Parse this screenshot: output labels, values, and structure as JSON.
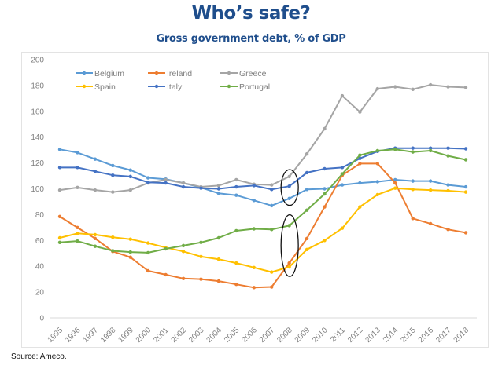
{
  "header": {
    "title": "Who’s safe?",
    "subtitle": "Gross government debt, % of GDP"
  },
  "footer": {
    "source": "Source: Ameco."
  },
  "chart_data": {
    "type": "line",
    "title": "Gross government debt, % of GDP",
    "xlabel": "",
    "ylabel": "",
    "ylim": [
      0,
      200
    ],
    "yticks": [
      0,
      20,
      40,
      60,
      80,
      100,
      120,
      140,
      160,
      180,
      200
    ],
    "grid": "horizontal baseline only",
    "legend_position": "top-left, 3 columns",
    "x": [
      "1995",
      "1996",
      "1997",
      "1998",
      "1999",
      "2000",
      "2001",
      "2002",
      "2003",
      "2004",
      "2005",
      "2006",
      "2007",
      "2008",
      "2009",
      "2010",
      "2011",
      "2012",
      "2013",
      "2014",
      "2015",
      "2016",
      "2017",
      "2018"
    ],
    "series": [
      {
        "name": "Belgium",
        "color": "#5b9bd5",
        "values": [
          130.5,
          128,
          123,
          118,
          114.5,
          108.5,
          107.5,
          104.5,
          101,
          96.5,
          95,
          91,
          87,
          92.5,
          99.5,
          100,
          103,
          104.5,
          105.5,
          107,
          106,
          106,
          103,
          101.5
        ]
      },
      {
        "name": "Ireland",
        "color": "#ed7d31",
        "values": [
          78.5,
          70,
          61.5,
          51.5,
          47,
          36.5,
          33.5,
          30.5,
          30,
          28.5,
          26,
          23.5,
          24,
          42.5,
          61.5,
          86,
          110.5,
          119.5,
          119.5,
          104.5,
          77,
          73,
          68.5,
          66
        ]
      },
      {
        "name": "Greece",
        "color": "#a5a5a5",
        "values": [
          99,
          101,
          99,
          97.5,
          99,
          104.5,
          107,
          104.5,
          101.5,
          102.5,
          107,
          103.5,
          103,
          109.5,
          127,
          146.5,
          172,
          159.5,
          177.5,
          179,
          177,
          180.5,
          179,
          178.5
        ]
      },
      {
        "name": "Spain",
        "color": "#ffc000",
        "values": [
          62,
          65.5,
          64.5,
          62.5,
          61,
          58,
          54.5,
          51.5,
          47.5,
          45.5,
          42.5,
          39,
          35.5,
          39.5,
          53,
          60,
          69.5,
          86,
          95.5,
          100.5,
          99.5,
          99,
          98.5,
          97.5
        ]
      },
      {
        "name": "Italy",
        "color": "#4472c4",
        "values": [
          116.5,
          116.5,
          113.5,
          110.5,
          109.5,
          105,
          104.5,
          101.5,
          100.5,
          100,
          101.5,
          102.5,
          99.5,
          102,
          112.5,
          115.5,
          116.5,
          123.5,
          129,
          131.5,
          131.5,
          131.5,
          131.5,
          131
        ]
      },
      {
        "name": "Portugal",
        "color": "#70ad47",
        "values": [
          58.5,
          59.5,
          55.5,
          52,
          51,
          50.5,
          53.5,
          56,
          58.5,
          62,
          67.5,
          69,
          68.5,
          71.5,
          83.5,
          96,
          111.5,
          126,
          129.5,
          130.5,
          128.5,
          129.5,
          125.5,
          122.5
        ]
      }
    ],
    "annotations": [
      {
        "type": "ellipse",
        "x": "2008",
        "y_range": [
          92,
          110
        ],
        "label": ""
      },
      {
        "type": "ellipse",
        "x": "2008",
        "y_range": [
          37,
          75
        ],
        "label": ""
      }
    ]
  }
}
